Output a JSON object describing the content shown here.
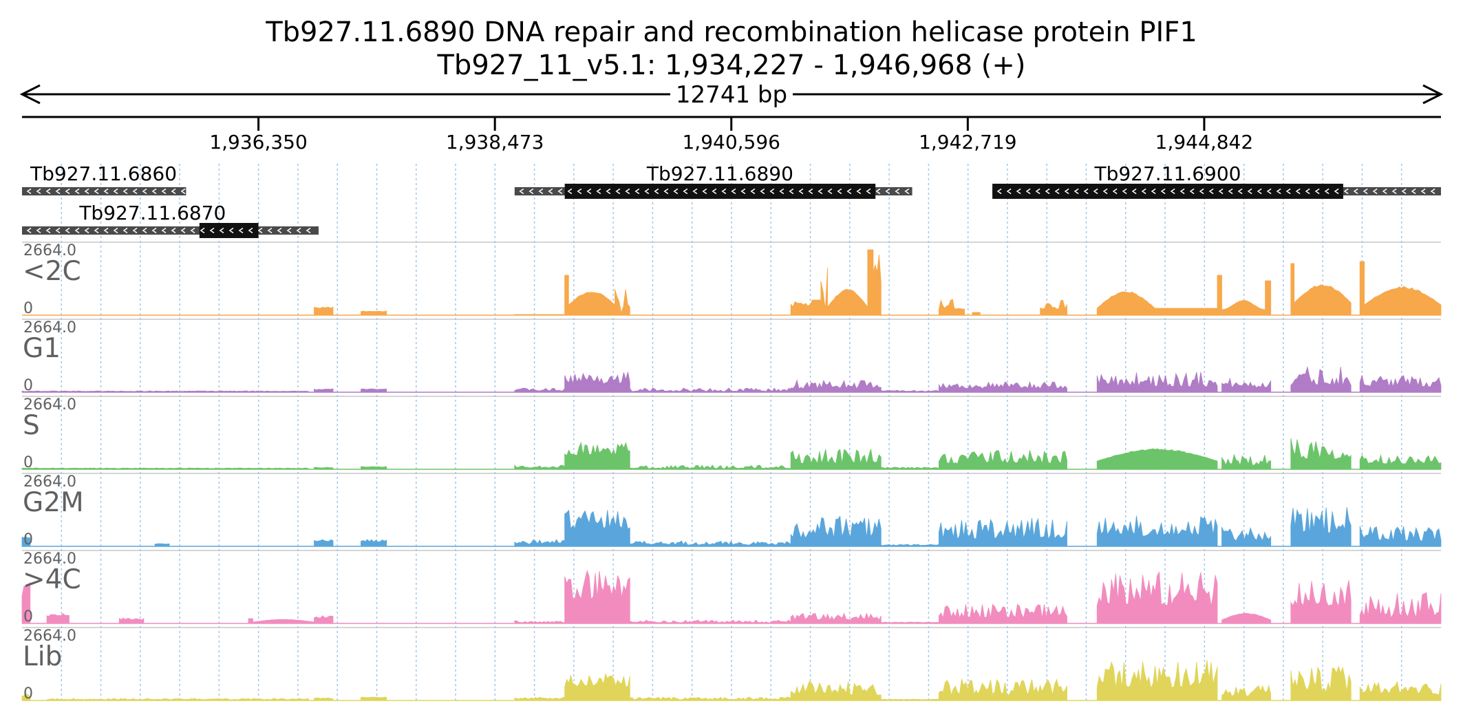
{
  "title": {
    "line1": "Tb927.11.6890  DNA repair and recombination helicase protein PIF1",
    "line2": "Tb927_11_v5.1: 1,934,227 - 1,946,968 (+)"
  },
  "span_label": "12741 bp",
  "region": {
    "start": 1934227,
    "end": 1946968
  },
  "ruler_ticks": [
    {
      "pos": 1936350,
      "label": "1,936,350"
    },
    {
      "pos": 1938473,
      "label": "1,938,473"
    },
    {
      "pos": 1940596,
      "label": "1,940,596"
    },
    {
      "pos": 1942719,
      "label": "1,942,719"
    },
    {
      "pos": 1944842,
      "label": "1,944,842"
    }
  ],
  "genes": [
    {
      "id": "Tb927.11.6860",
      "label": "Tb927.11.6860",
      "row": 0,
      "start": 1934227,
      "end": 1935700,
      "cds": [],
      "strand": "-"
    },
    {
      "id": "Tb927.11.6870",
      "label": "Tb927.11.6870",
      "row": 1,
      "start": 1934227,
      "end": 1936890,
      "cds": [
        1935820,
        1936350
      ],
      "strand": "-"
    },
    {
      "id": "Tb927.11.6890",
      "label": "Tb927.11.6890",
      "row": 0,
      "start": 1938650,
      "end": 1942220,
      "cds": [
        1939100,
        1941890
      ],
      "strand": "-"
    },
    {
      "id": "Tb927.11.6900",
      "label": "Tb927.11.6900",
      "row": 0,
      "start": 1942940,
      "end": 1946968,
      "cds": [
        1942940,
        1946090
      ],
      "strand": "-"
    }
  ],
  "tracks": [
    {
      "name": "<2C",
      "max_label": "2664.0",
      "min_label": "0",
      "color": "#f7a84a",
      "key": "c2"
    },
    {
      "name": "G1",
      "max_label": "2664.0",
      "min_label": "0",
      "color": "#b07cc6",
      "key": "g1"
    },
    {
      "name": "S",
      "max_label": "2664.0",
      "min_label": "0",
      "color": "#6cc46a",
      "key": "s"
    },
    {
      "name": "G2M",
      "max_label": "2664.0",
      "min_label": "0",
      "color": "#5aa6dc",
      "key": "g2m"
    },
    {
      "name": ">4C",
      "max_label": "2664.0",
      "min_label": "0",
      "color": "#f28cbf",
      "key": "c4"
    },
    {
      "name": "Lib",
      "max_label": "2664.0",
      "min_label": "0",
      "color": "#e0d55a",
      "key": "lib"
    }
  ],
  "coverage": {
    "c2": [
      [
        1936850,
        1937020,
        0.1,
        0.12,
        "flat"
      ],
      [
        1937270,
        1937500,
        0.05,
        0.06,
        "flat"
      ],
      [
        1938650,
        1939100,
        0.01,
        0.01,
        "flat"
      ],
      [
        1939100,
        1939135,
        0.58,
        0.58,
        "flat"
      ],
      [
        1939135,
        1939550,
        0.15,
        0.35,
        "dome"
      ],
      [
        1939550,
        1939685,
        0.01,
        0.38,
        "flat"
      ],
      [
        1941130,
        1941320,
        0.12,
        0.2,
        "flat"
      ],
      [
        1941320,
        1941400,
        0.22,
        0.22,
        "flat"
      ],
      [
        1941400,
        1941460,
        0.05,
        0.75,
        "flat"
      ],
      [
        1941460,
        1941820,
        0.12,
        0.38,
        "dome"
      ],
      [
        1941820,
        1941870,
        0.95,
        0.95,
        "spike"
      ],
      [
        1941870,
        1941940,
        0.3,
        0.9,
        "flat"
      ],
      [
        1942460,
        1942600,
        0.08,
        0.25,
        "flat"
      ],
      [
        1942600,
        1942690,
        0.08,
        0.1,
        "flat"
      ],
      [
        1942760,
        1942830,
        0.04,
        0.04,
        "flat"
      ],
      [
        1943370,
        1943610,
        0.08,
        0.22,
        "flat"
      ],
      [
        1943880,
        1944400,
        0.1,
        0.35,
        "dome"
      ],
      [
        1944400,
        1944960,
        0.1,
        0.1,
        "flat"
      ],
      [
        1944960,
        1945000,
        0.58,
        0.58,
        "flat"
      ],
      [
        1945000,
        1945390,
        0.08,
        0.22,
        "wave"
      ],
      [
        1945390,
        1945440,
        0.5,
        0.5,
        "flat"
      ],
      [
        1945620,
        1945650,
        0.75,
        0.75,
        "flat"
      ],
      [
        1945650,
        1946160,
        0.18,
        0.45,
        "dome"
      ],
      [
        1946240,
        1946280,
        0.78,
        0.78,
        "flat"
      ],
      [
        1946280,
        1946968,
        0.15,
        0.42,
        "dome"
      ]
    ],
    "g1": [
      [
        1934227,
        1936800,
        0.01,
        0.02,
        "flat"
      ],
      [
        1936850,
        1937020,
        0.03,
        0.05,
        "flat"
      ],
      [
        1937270,
        1937500,
        0.04,
        0.05,
        "flat"
      ],
      [
        1938650,
        1939100,
        0.02,
        0.06,
        "rough"
      ],
      [
        1939100,
        1939685,
        0.12,
        0.3,
        "rough"
      ],
      [
        1939685,
        1941130,
        0.01,
        0.06,
        "rough"
      ],
      [
        1941130,
        1941940,
        0.05,
        0.18,
        "rough"
      ],
      [
        1941940,
        1942460,
        0.01,
        0.03,
        "flat"
      ],
      [
        1942460,
        1943610,
        0.05,
        0.15,
        "rough"
      ],
      [
        1943880,
        1944960,
        0.08,
        0.3,
        "rough"
      ],
      [
        1945000,
        1945440,
        0.06,
        0.2,
        "rough"
      ],
      [
        1945620,
        1946160,
        0.1,
        0.38,
        "rough"
      ],
      [
        1946240,
        1946968,
        0.08,
        0.25,
        "rough"
      ]
    ],
    "s": [
      [
        1934227,
        1936800,
        0.01,
        0.02,
        "flat"
      ],
      [
        1936850,
        1937020,
        0.02,
        0.03,
        "flat"
      ],
      [
        1937270,
        1937500,
        0.03,
        0.04,
        "flat"
      ],
      [
        1938650,
        1939100,
        0.02,
        0.06,
        "rough"
      ],
      [
        1939100,
        1939685,
        0.2,
        0.4,
        "rough"
      ],
      [
        1939685,
        1941130,
        0.01,
        0.06,
        "rough"
      ],
      [
        1941130,
        1941940,
        0.08,
        0.3,
        "rough"
      ],
      [
        1941940,
        1942460,
        0.01,
        0.03,
        "flat"
      ],
      [
        1942460,
        1943610,
        0.08,
        0.28,
        "rough"
      ],
      [
        1943880,
        1944960,
        0.12,
        0.3,
        "dome"
      ],
      [
        1945000,
        1945440,
        0.06,
        0.22,
        "rough"
      ],
      [
        1945620,
        1946160,
        0.15,
        0.5,
        "rough"
      ],
      [
        1946240,
        1946968,
        0.08,
        0.22,
        "rough"
      ]
    ],
    "g2m": [
      [
        1934227,
        1934300,
        0.12,
        0.15,
        "flat"
      ],
      [
        1935420,
        1935550,
        0.03,
        0.04,
        "flat"
      ],
      [
        1936850,
        1937020,
        0.07,
        0.1,
        "flat"
      ],
      [
        1937270,
        1937500,
        0.06,
        0.1,
        "flat"
      ],
      [
        1938650,
        1939100,
        0.03,
        0.1,
        "rough"
      ],
      [
        1939100,
        1939685,
        0.25,
        0.55,
        "rough"
      ],
      [
        1939685,
        1941130,
        0.02,
        0.08,
        "rough"
      ],
      [
        1941130,
        1941940,
        0.12,
        0.45,
        "rough"
      ],
      [
        1941940,
        1942460,
        0.01,
        0.03,
        "flat"
      ],
      [
        1942460,
        1943610,
        0.1,
        0.42,
        "rough"
      ],
      [
        1943880,
        1944960,
        0.15,
        0.45,
        "rough"
      ],
      [
        1945000,
        1945440,
        0.08,
        0.28,
        "rough"
      ],
      [
        1945620,
        1946160,
        0.18,
        0.58,
        "rough"
      ],
      [
        1946240,
        1946968,
        0.08,
        0.3,
        "rough"
      ]
    ],
    "c4": [
      [
        1934227,
        1934300,
        0.3,
        0.6,
        "flat"
      ],
      [
        1934450,
        1934650,
        0.1,
        0.15,
        "flat"
      ],
      [
        1935100,
        1935320,
        0.05,
        0.08,
        "flat"
      ],
      [
        1936260,
        1936300,
        0.07,
        0.07,
        "flat"
      ],
      [
        1936300,
        1936850,
        0.02,
        0.06,
        "dome"
      ],
      [
        1936850,
        1937020,
        0.08,
        0.12,
        "flat"
      ],
      [
        1938650,
        1939100,
        0.01,
        0.04,
        "rough"
      ],
      [
        1939100,
        1939685,
        0.35,
        0.78,
        "rough"
      ],
      [
        1939685,
        1941130,
        0.01,
        0.05,
        "rough"
      ],
      [
        1941130,
        1941940,
        0.05,
        0.15,
        "rough"
      ],
      [
        1941940,
        1942460,
        0.01,
        0.02,
        "flat"
      ],
      [
        1942460,
        1943610,
        0.08,
        0.28,
        "rough"
      ],
      [
        1943880,
        1944960,
        0.25,
        0.75,
        "rough"
      ],
      [
        1945000,
        1945440,
        0.05,
        0.15,
        "dome"
      ],
      [
        1945620,
        1946160,
        0.25,
        0.65,
        "rough"
      ],
      [
        1946240,
        1946968,
        0.08,
        0.45,
        "rough"
      ]
    ],
    "lib": [
      [
        1934227,
        1934300,
        0.05,
        0.1,
        "flat"
      ],
      [
        1934450,
        1936800,
        0.01,
        0.03,
        "rough"
      ],
      [
        1936850,
        1937020,
        0.02,
        0.04,
        "flat"
      ],
      [
        1937270,
        1937500,
        0.04,
        0.05,
        "flat"
      ],
      [
        1938650,
        1939100,
        0.02,
        0.05,
        "rough"
      ],
      [
        1939100,
        1939685,
        0.2,
        0.4,
        "rough"
      ],
      [
        1939685,
        1941130,
        0.01,
        0.05,
        "rough"
      ],
      [
        1941130,
        1941940,
        0.08,
        0.28,
        "rough"
      ],
      [
        1941940,
        1942460,
        0.01,
        0.02,
        "flat"
      ],
      [
        1942460,
        1943610,
        0.08,
        0.32,
        "rough"
      ],
      [
        1943880,
        1944960,
        0.18,
        0.6,
        "rough"
      ],
      [
        1945000,
        1945440,
        0.06,
        0.22,
        "rough"
      ],
      [
        1945620,
        1946160,
        0.12,
        0.5,
        "rough"
      ],
      [
        1946240,
        1946968,
        0.08,
        0.28,
        "rough"
      ]
    ]
  }
}
